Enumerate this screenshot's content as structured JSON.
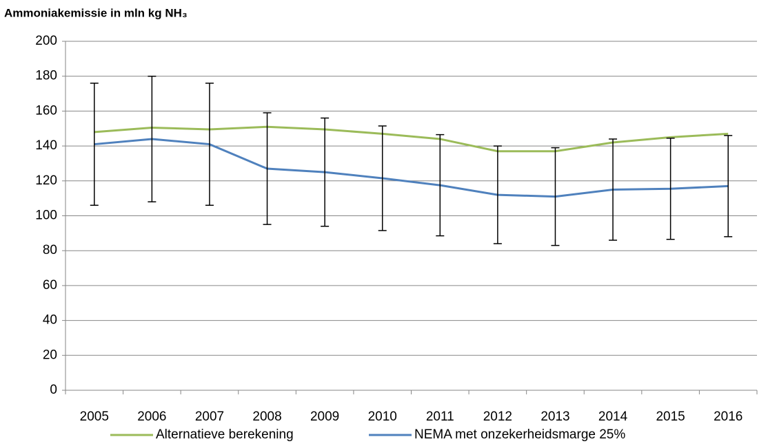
{
  "chart_data": {
    "type": "line",
    "title": "Ammoniakemissie in mln kg NH₃",
    "categories": [
      "2005",
      "2006",
      "2007",
      "2008",
      "2009",
      "2010",
      "2011",
      "2012",
      "2013",
      "2014",
      "2015",
      "2016"
    ],
    "series": [
      {
        "name": "Alternatieve berekening",
        "color": "#9bbb59",
        "values": [
          148,
          150.5,
          149.5,
          151,
          149.5,
          147,
          144,
          137,
          137,
          142,
          145,
          147
        ]
      },
      {
        "name": "NEMA met onzekerheidsmarge 25%",
        "color": "#4f81bd",
        "values": [
          141,
          144,
          141,
          127,
          125,
          121.5,
          117.5,
          112,
          111,
          115,
          115.5,
          117
        ],
        "errors": [
          35,
          36,
          35,
          32,
          31,
          30,
          29,
          28,
          28,
          29,
          29,
          29
        ]
      }
    ],
    "ylim": [
      0,
      200
    ],
    "yticks": [
      0,
      20,
      40,
      60,
      80,
      100,
      120,
      140,
      160,
      180,
      200
    ],
    "grid": true,
    "legend": "bottom"
  }
}
